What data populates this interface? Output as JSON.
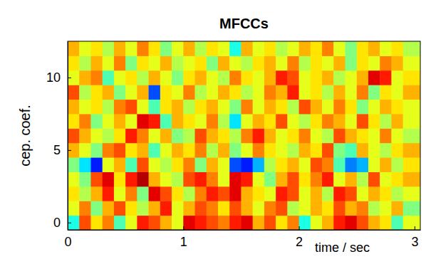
{
  "chart_data": {
    "type": "heatmap",
    "title": "MFCCs",
    "x_label": "time / sec",
    "y_label": "cep. coef.",
    "xlim": [
      0,
      3.05
    ],
    "ylim": [
      -0.5,
      12.5
    ],
    "xticks": [
      0,
      1,
      2,
      3
    ],
    "yticks": [
      0,
      5,
      10
    ],
    "x": [
      0,
      0.1,
      0.2,
      0.3,
      0.4,
      0.5,
      0.6,
      0.7,
      0.8,
      0.9,
      1.0,
      1.1,
      1.2,
      1.3,
      1.4,
      1.5,
      1.6,
      1.7,
      1.8,
      1.9,
      2.0,
      2.1,
      2.2,
      2.3,
      2.4,
      2.5,
      2.6,
      2.7,
      2.8,
      2.9
    ],
    "y": [
      0,
      1,
      2,
      3,
      4,
      5,
      6,
      7,
      8,
      9,
      10,
      11,
      12
    ],
    "zlim": [
      0,
      1
    ],
    "z": [
      [
        0.4,
        0.8,
        0.65,
        0.75,
        0.45,
        0.6,
        0.85,
        0.8,
        0.7,
        0.6,
        0.9,
        0.85,
        0.8,
        0.75,
        0.85,
        0.9,
        0.7,
        0.8,
        0.65,
        0.75,
        0.4,
        0.6,
        0.7,
        0.85,
        0.9,
        0.8,
        0.7,
        0.65,
        0.45,
        0.6
      ],
      [
        0.6,
        0.75,
        0.5,
        0.7,
        0.8,
        0.65,
        0.55,
        0.7,
        0.85,
        0.6,
        0.7,
        0.8,
        0.75,
        0.65,
        0.8,
        0.7,
        0.6,
        0.75,
        0.8,
        0.55,
        0.6,
        0.7,
        0.65,
        0.8,
        0.7,
        0.75,
        0.55,
        0.6,
        0.7,
        0.5
      ],
      [
        0.65,
        0.55,
        0.7,
        0.85,
        0.6,
        0.75,
        0.5,
        0.9,
        0.8,
        0.65,
        0.55,
        0.75,
        0.85,
        0.8,
        0.9,
        0.7,
        0.65,
        0.6,
        0.85,
        0.8,
        0.6,
        0.7,
        0.55,
        0.85,
        0.8,
        0.6,
        0.7,
        0.65,
        0.55,
        0.6
      ],
      [
        0.6,
        0.5,
        0.8,
        0.9,
        0.65,
        0.85,
        0.95,
        0.7,
        0.6,
        0.55,
        0.8,
        0.85,
        0.75,
        0.6,
        0.9,
        0.85,
        0.6,
        0.5,
        0.7,
        0.8,
        0.65,
        0.75,
        0.85,
        0.6,
        0.7,
        0.55,
        0.8,
        0.6,
        0.65,
        0.7
      ],
      [
        0.5,
        0.35,
        0.15,
        0.6,
        0.7,
        0.45,
        0.8,
        0.6,
        0.55,
        0.65,
        0.75,
        0.5,
        0.7,
        0.6,
        0.2,
        0.15,
        0.3,
        0.55,
        0.65,
        0.7,
        0.6,
        0.8,
        0.75,
        0.45,
        0.25,
        0.3,
        0.6,
        0.7,
        0.55,
        0.65
      ],
      [
        0.7,
        0.6,
        0.5,
        0.75,
        0.8,
        0.65,
        0.7,
        0.45,
        0.6,
        0.7,
        0.65,
        0.75,
        0.55,
        0.7,
        0.5,
        0.6,
        0.75,
        0.65,
        0.6,
        0.55,
        0.7,
        0.65,
        0.8,
        0.5,
        0.45,
        0.7,
        0.6,
        0.55,
        0.65,
        0.7
      ],
      [
        0.8,
        0.7,
        0.6,
        0.55,
        0.65,
        0.85,
        0.75,
        0.6,
        0.7,
        0.5,
        0.55,
        0.8,
        0.7,
        0.65,
        0.55,
        0.75,
        0.85,
        0.7,
        0.6,
        0.65,
        0.75,
        0.6,
        0.55,
        0.8,
        0.7,
        0.65,
        0.6,
        0.75,
        0.6,
        0.55
      ],
      [
        0.65,
        0.75,
        0.5,
        0.6,
        0.7,
        0.6,
        0.9,
        0.85,
        0.45,
        0.7,
        0.65,
        0.6,
        0.75,
        0.55,
        0.35,
        0.6,
        0.7,
        0.65,
        0.8,
        0.6,
        0.55,
        0.65,
        0.75,
        0.7,
        0.6,
        0.8,
        0.65,
        0.55,
        0.7,
        0.6
      ],
      [
        0.7,
        0.6,
        0.65,
        0.55,
        0.75,
        0.8,
        0.6,
        0.45,
        0.65,
        0.7,
        0.55,
        0.65,
        0.7,
        0.6,
        0.5,
        0.75,
        0.6,
        0.7,
        0.65,
        0.55,
        0.8,
        0.7,
        0.6,
        0.75,
        0.65,
        0.5,
        0.6,
        0.7,
        0.65,
        0.6
      ],
      [
        0.8,
        0.55,
        0.65,
        0.7,
        0.5,
        0.6,
        0.7,
        0.2,
        0.65,
        0.6,
        0.75,
        0.55,
        0.6,
        0.7,
        0.65,
        0.55,
        0.6,
        0.75,
        0.7,
        0.85,
        0.6,
        0.65,
        0.55,
        0.7,
        0.6,
        0.75,
        0.5,
        0.65,
        0.6,
        0.7
      ],
      [
        0.6,
        0.7,
        0.75,
        0.45,
        0.6,
        0.65,
        0.55,
        0.7,
        0.6,
        0.5,
        0.65,
        0.7,
        0.6,
        0.55,
        0.75,
        0.65,
        0.6,
        0.7,
        0.85,
        0.8,
        0.6,
        0.65,
        0.7,
        0.55,
        0.6,
        0.7,
        0.9,
        0.85,
        0.6,
        0.65
      ],
      [
        0.65,
        0.55,
        0.7,
        0.6,
        0.75,
        0.5,
        0.65,
        0.6,
        0.7,
        0.55,
        0.6,
        0.65,
        0.5,
        0.7,
        0.6,
        0.55,
        0.65,
        0.7,
        0.6,
        0.75,
        0.55,
        0.65,
        0.6,
        0.7,
        0.5,
        0.65,
        0.6,
        0.75,
        0.7,
        0.6
      ],
      [
        0.7,
        0.6,
        0.65,
        0.55,
        0.7,
        0.6,
        0.75,
        0.65,
        0.5,
        0.6,
        0.7,
        0.55,
        0.65,
        0.6,
        0.4,
        0.7,
        0.6,
        0.65,
        0.55,
        0.6,
        0.7,
        0.65,
        0.75,
        0.6,
        0.5,
        0.65,
        0.7,
        0.6,
        0.65,
        0.55
      ]
    ]
  }
}
